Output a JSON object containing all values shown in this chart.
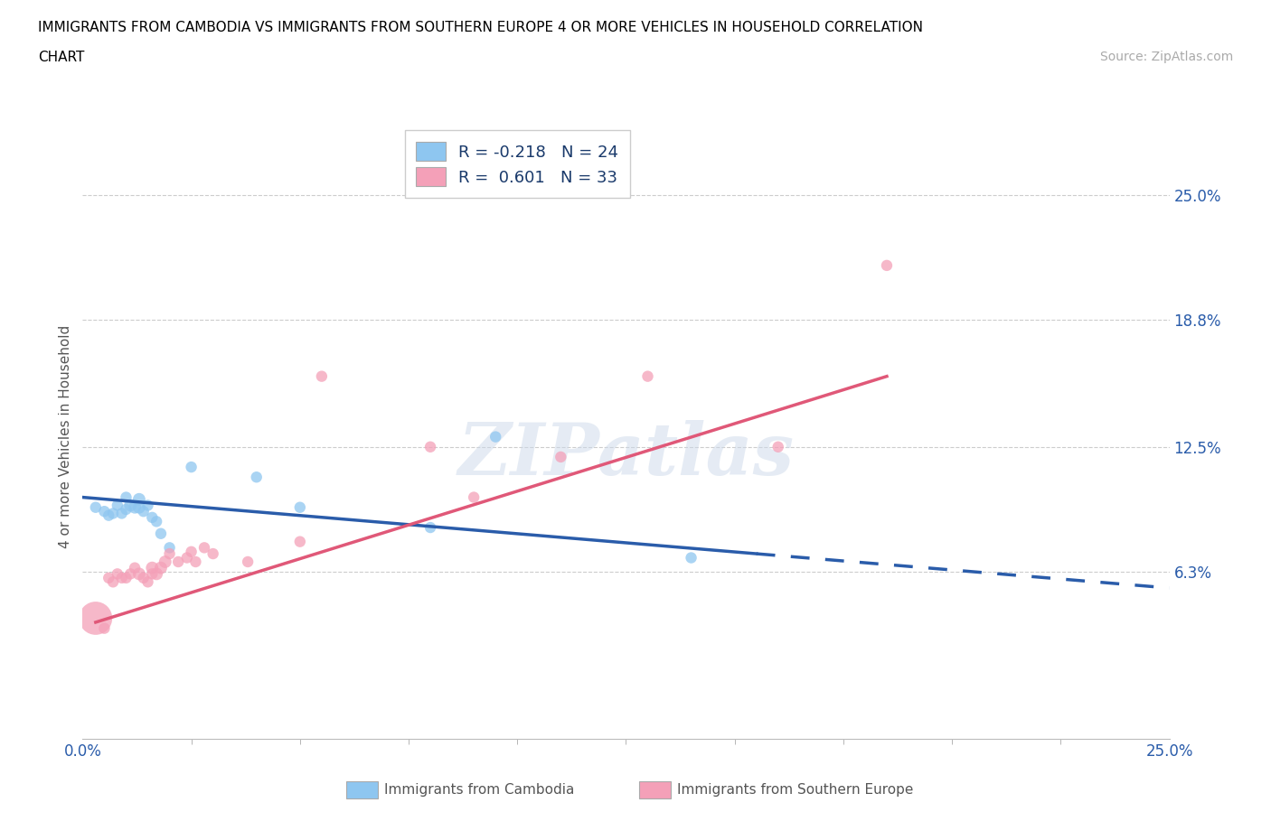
{
  "title_line1": "IMMIGRANTS FROM CAMBODIA VS IMMIGRANTS FROM SOUTHERN EUROPE 4 OR MORE VEHICLES IN HOUSEHOLD CORRELATION",
  "title_line2": "CHART",
  "source_text": "Source: ZipAtlas.com",
  "ylabel": "4 or more Vehicles in Household",
  "legend_label1": "Immigrants from Cambodia",
  "legend_label2": "Immigrants from Southern Europe",
  "R1": -0.218,
  "N1": 24,
  "R2": 0.601,
  "N2": 33,
  "color1": "#8ec6f0",
  "color2": "#f4a0b8",
  "line_color1": "#2a5caa",
  "line_color2": "#e05878",
  "xlim": [
    0.0,
    0.25
  ],
  "ylim": [
    -0.02,
    0.28
  ],
  "watermark": "ZIPatlas",
  "scatter1_x": [
    0.003,
    0.005,
    0.006,
    0.007,
    0.008,
    0.009,
    0.01,
    0.01,
    0.011,
    0.012,
    0.013,
    0.013,
    0.014,
    0.015,
    0.016,
    0.017,
    0.018,
    0.02,
    0.025,
    0.04,
    0.05,
    0.08,
    0.095,
    0.14
  ],
  "scatter1_y": [
    0.095,
    0.093,
    0.091,
    0.092,
    0.096,
    0.092,
    0.1,
    0.094,
    0.096,
    0.095,
    0.099,
    0.095,
    0.093,
    0.096,
    0.09,
    0.088,
    0.082,
    0.075,
    0.115,
    0.11,
    0.095,
    0.085,
    0.13,
    0.07
  ],
  "scatter1_sizes": [
    80,
    80,
    80,
    80,
    80,
    80,
    80,
    80,
    100,
    100,
    100,
    100,
    80,
    80,
    80,
    80,
    80,
    80,
    80,
    80,
    80,
    80,
    80,
    80
  ],
  "scatter2_x": [
    0.003,
    0.005,
    0.006,
    0.007,
    0.008,
    0.009,
    0.01,
    0.011,
    0.012,
    0.013,
    0.014,
    0.015,
    0.016,
    0.016,
    0.017,
    0.018,
    0.019,
    0.02,
    0.022,
    0.024,
    0.025,
    0.026,
    0.028,
    0.03,
    0.038,
    0.05,
    0.055,
    0.08,
    0.09,
    0.11,
    0.13,
    0.16,
    0.185
  ],
  "scatter2_y": [
    0.04,
    0.035,
    0.06,
    0.058,
    0.062,
    0.06,
    0.06,
    0.062,
    0.065,
    0.062,
    0.06,
    0.058,
    0.062,
    0.065,
    0.062,
    0.065,
    0.068,
    0.072,
    0.068,
    0.07,
    0.073,
    0.068,
    0.075,
    0.072,
    0.068,
    0.078,
    0.16,
    0.125,
    0.1,
    0.12,
    0.16,
    0.125,
    0.215
  ],
  "scatter2_sizes": [
    700,
    80,
    80,
    80,
    80,
    80,
    80,
    80,
    80,
    100,
    80,
    80,
    80,
    100,
    100,
    100,
    100,
    80,
    80,
    80,
    80,
    80,
    80,
    80,
    80,
    80,
    80,
    80,
    80,
    80,
    80,
    80,
    80
  ],
  "line1_x0": 0.0,
  "line1_y0": 0.1,
  "line1_x1": 0.155,
  "line1_y1": 0.072,
  "line1_xdash_end": 0.25,
  "line1_ydash_end": 0.055,
  "line2_x0": 0.003,
  "line2_y0": 0.038,
  "line2_x1": 0.185,
  "line2_y1": 0.16
}
